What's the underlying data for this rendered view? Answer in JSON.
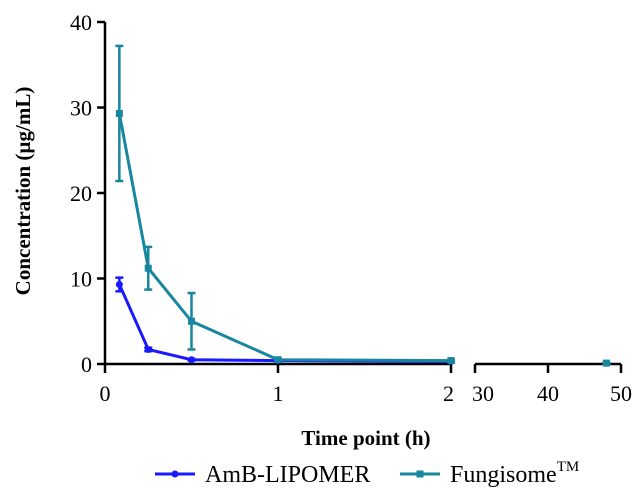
{
  "chart_data": {
    "type": "line",
    "xlabel": "Time point (h)",
    "ylabel": "Concentration (µg/mL)",
    "ylim": [
      0,
      40
    ],
    "yticks": [
      "0",
      "10",
      "20",
      "30",
      "40"
    ],
    "x_axis_segments": [
      {
        "range": [
          0,
          2
        ],
        "ticks": [
          "0",
          "1",
          "2"
        ]
      },
      {
        "range": [
          30,
          50
        ],
        "ticks": [
          "30",
          "40",
          "50"
        ]
      }
    ],
    "grid": false,
    "legend_position": "bottom",
    "series": [
      {
        "name": "AmB-LIPOMER",
        "name_sup": "",
        "color": "#1a1aff",
        "marker": "circle",
        "points": [
          {
            "x": 0.083,
            "y": 9.3,
            "err": 0.8
          },
          {
            "x": 0.25,
            "y": 1.7,
            "err": 0.2
          },
          {
            "x": 0.5,
            "y": 0.5,
            "err": 0.1
          },
          {
            "x": 1,
            "y": 0.4,
            "err": 0.1
          },
          {
            "x": 2,
            "y": 0.3,
            "err": 0.1
          },
          {
            "x": 48,
            "y": 0.1,
            "err": 0.05
          }
        ]
      },
      {
        "name": "Fungisome",
        "name_sup": "TM",
        "color": "#17869e",
        "marker": "square",
        "points": [
          {
            "x": 0.083,
            "y": 29.3,
            "err": 7.9
          },
          {
            "x": 0.25,
            "y": 11.2,
            "err": 2.5
          },
          {
            "x": 0.5,
            "y": 5.0,
            "err": 3.3
          },
          {
            "x": 1,
            "y": 0.5,
            "err": 0.1
          },
          {
            "x": 2,
            "y": 0.4,
            "err": 0.1
          },
          {
            "x": 48,
            "y": 0.1,
            "err": 0.05
          }
        ]
      }
    ]
  }
}
